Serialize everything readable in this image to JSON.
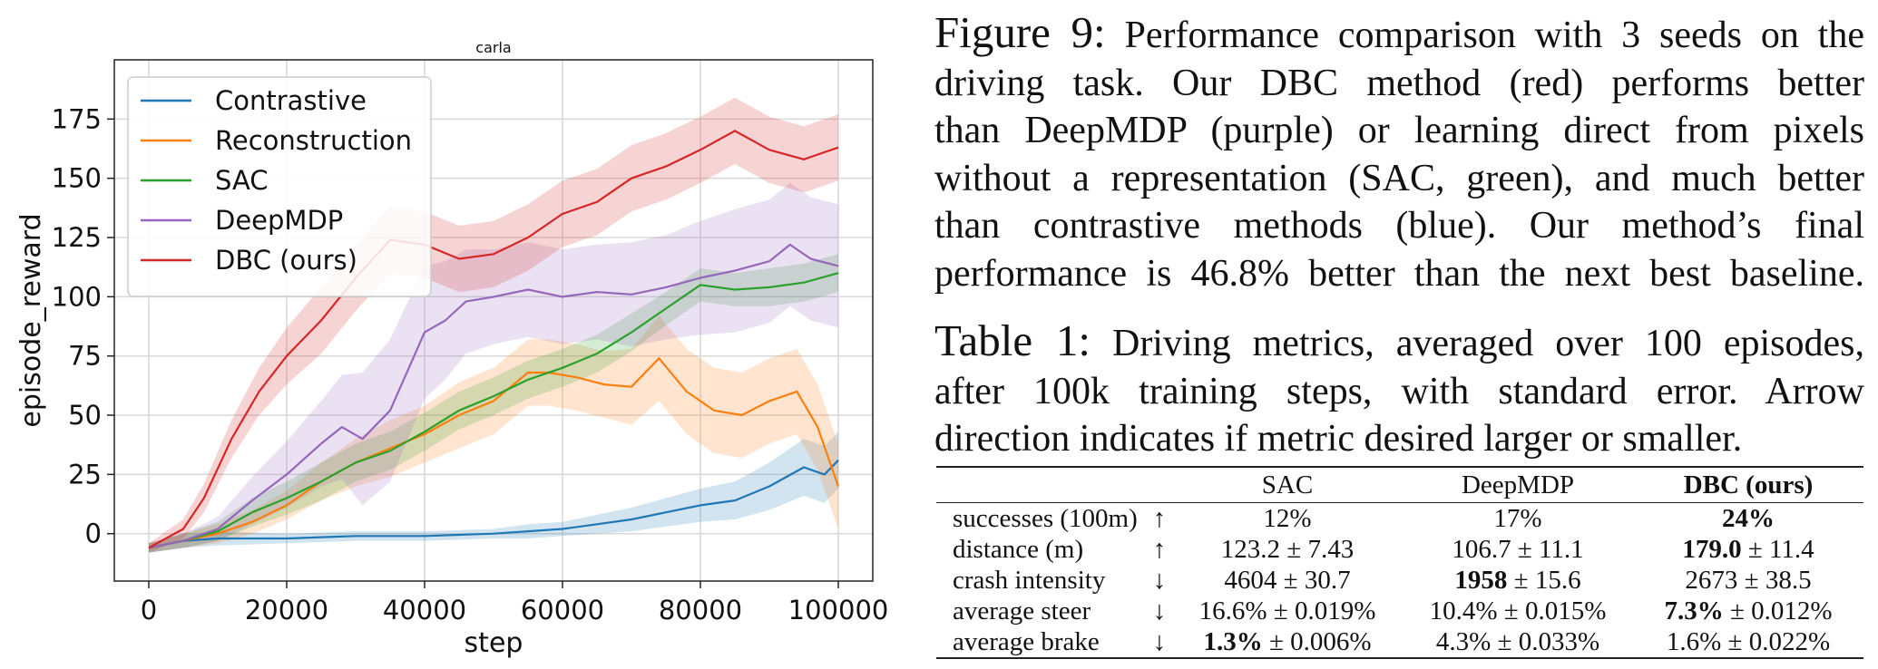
{
  "chart_data": {
    "type": "line",
    "title": "carla",
    "xlabel": "step",
    "ylabel": "episode_reward",
    "xlim": [
      -5000,
      105000
    ],
    "ylim": [
      -20,
      200
    ],
    "xticks": [
      0,
      20000,
      40000,
      60000,
      80000,
      100000
    ],
    "yticks": [
      0,
      25,
      50,
      75,
      100,
      125,
      150,
      175
    ],
    "grid": true,
    "legend_position": "top-left",
    "series": [
      {
        "name": "Contrastive",
        "color": "#1f77b4",
        "x": [
          0,
          5000,
          10000,
          20000,
          30000,
          40000,
          50000,
          55000,
          60000,
          65000,
          70000,
          75000,
          80000,
          85000,
          90000,
          95000,
          98000,
          100000
        ],
        "y": [
          -6,
          -3,
          -2,
          -2,
          -1,
          -1,
          0,
          1,
          2,
          4,
          6,
          9,
          12,
          14,
          20,
          28,
          25,
          31
        ],
        "band": [
          2,
          3,
          3,
          2,
          2,
          2,
          2,
          3,
          3,
          4,
          5,
          6,
          7,
          8,
          10,
          12,
          12,
          12
        ]
      },
      {
        "name": "Reconstruction",
        "color": "#ff7f0e",
        "x": [
          0,
          5000,
          10000,
          15000,
          20000,
          25000,
          30000,
          35000,
          40000,
          45000,
          50000,
          55000,
          58000,
          62000,
          66000,
          70000,
          74000,
          78000,
          82000,
          86000,
          90000,
          94000,
          97000,
          100000
        ],
        "y": [
          -6,
          -3,
          0,
          5,
          12,
          22,
          30,
          36,
          42,
          50,
          56,
          68,
          68,
          66,
          63,
          62,
          74,
          60,
          52,
          50,
          56,
          60,
          45,
          20
        ],
        "band": [
          2,
          3,
          4,
          5,
          6,
          8,
          10,
          12,
          12,
          14,
          14,
          14,
          14,
          14,
          14,
          16,
          18,
          18,
          18,
          18,
          18,
          18,
          18,
          18
        ]
      },
      {
        "name": "SAC",
        "color": "#2ca02c",
        "x": [
          0,
          5000,
          10000,
          15000,
          20000,
          25000,
          30000,
          35000,
          40000,
          45000,
          50000,
          55000,
          60000,
          65000,
          70000,
          75000,
          80000,
          85000,
          90000,
          95000,
          100000
        ],
        "y": [
          -6,
          -3,
          1,
          9,
          15,
          22,
          30,
          35,
          43,
          52,
          58,
          65,
          70,
          76,
          85,
          95,
          105,
          103,
          104,
          106,
          110
        ],
        "band": [
          2,
          3,
          4,
          6,
          7,
          8,
          8,
          8,
          8,
          8,
          8,
          8,
          8,
          8,
          8,
          7,
          7,
          7,
          8,
          8,
          8
        ]
      },
      {
        "name": "DeepMDP",
        "color": "#9467bd",
        "x": [
          0,
          5000,
          10000,
          15000,
          20000,
          25000,
          28000,
          31000,
          35000,
          40000,
          43000,
          46000,
          50000,
          55000,
          60000,
          65000,
          70000,
          75000,
          80000,
          85000,
          90000,
          93000,
          96000,
          100000
        ],
        "y": [
          -6,
          -3,
          2,
          14,
          25,
          38,
          45,
          40,
          52,
          85,
          90,
          98,
          100,
          103,
          100,
          102,
          101,
          104,
          108,
          111,
          115,
          122,
          116,
          113
        ],
        "band": [
          2,
          3,
          5,
          10,
          14,
          18,
          22,
          28,
          30,
          28,
          25,
          22,
          20,
          20,
          20,
          20,
          22,
          22,
          24,
          26,
          26,
          26,
          26,
          26
        ]
      },
      {
        "name": "DBC (ours)",
        "color": "#d62728",
        "x": [
          0,
          5000,
          8000,
          12000,
          16000,
          20000,
          25000,
          30000,
          35000,
          40000,
          45000,
          50000,
          55000,
          60000,
          65000,
          70000,
          75000,
          80000,
          85000,
          90000,
          95000,
          100000
        ],
        "y": [
          -6,
          2,
          15,
          40,
          60,
          75,
          90,
          108,
          124,
          122,
          116,
          118,
          125,
          135,
          140,
          150,
          155,
          162,
          170,
          162,
          158,
          163
        ],
        "band": [
          2,
          4,
          6,
          8,
          10,
          12,
          14,
          14,
          14,
          14,
          14,
          14,
          14,
          14,
          14,
          14,
          14,
          14,
          14,
          14,
          14,
          14
        ]
      }
    ]
  },
  "figure_caption": {
    "label": "Figure 9:",
    "lines": [
      "Performance comparison with 3 seeds on the",
      "driving task.  Our DBC method (red) performs better",
      "than DeepMDP (purple) or learning direct from pixels",
      "without a representation (SAC, green), and much better",
      "than contrastive methods (blue).  Our method’s final",
      "performance is 46.8% better than the next best baseline."
    ]
  },
  "table_caption": {
    "label": "Table 1:",
    "lines": [
      "Driving metrics, averaged over 100 episodes,",
      "after 100k training steps, with standard error.  Arrow",
      "direction indicates if metric desired larger or smaller."
    ]
  },
  "table": {
    "columns": [
      "SAC",
      "DeepMDP",
      "DBC (ours)"
    ],
    "rows": [
      {
        "metric": "successes (100m)",
        "arrow": "↑",
        "cells": [
          [
            "12%",
            ""
          ],
          [
            "17%",
            ""
          ],
          [
            "24%",
            ""
          ]
        ],
        "bold": [
          2
        ]
      },
      {
        "metric": "distance (m)",
        "arrow": "↑",
        "cells": [
          [
            "123.2",
            " ± 7.43"
          ],
          [
            "106.7",
            " ± 11.1"
          ],
          [
            "179.0",
            " ± 11.4"
          ]
        ],
        "bold": [
          2
        ]
      },
      {
        "metric": "crash intensity",
        "arrow": "↓",
        "cells": [
          [
            "4604",
            " ± 30.7"
          ],
          [
            "1958",
            " ± 15.6"
          ],
          [
            "2673",
            " ± 38.5"
          ]
        ],
        "bold": [
          1
        ]
      },
      {
        "metric": "average steer",
        "arrow": "↓",
        "cells": [
          [
            "16.6%",
            " ± 0.019%"
          ],
          [
            "10.4%",
            " ± 0.015%"
          ],
          [
            "7.3%",
            " ± 0.012%"
          ]
        ],
        "bold": [
          2
        ]
      },
      {
        "metric": "average brake",
        "arrow": "↓",
        "cells": [
          [
            "1.3%",
            " ± 0.006%"
          ],
          [
            "4.3%",
            " ± 0.033%"
          ],
          [
            "1.6%",
            " ± 0.022%"
          ]
        ],
        "bold": [
          0
        ]
      }
    ]
  }
}
